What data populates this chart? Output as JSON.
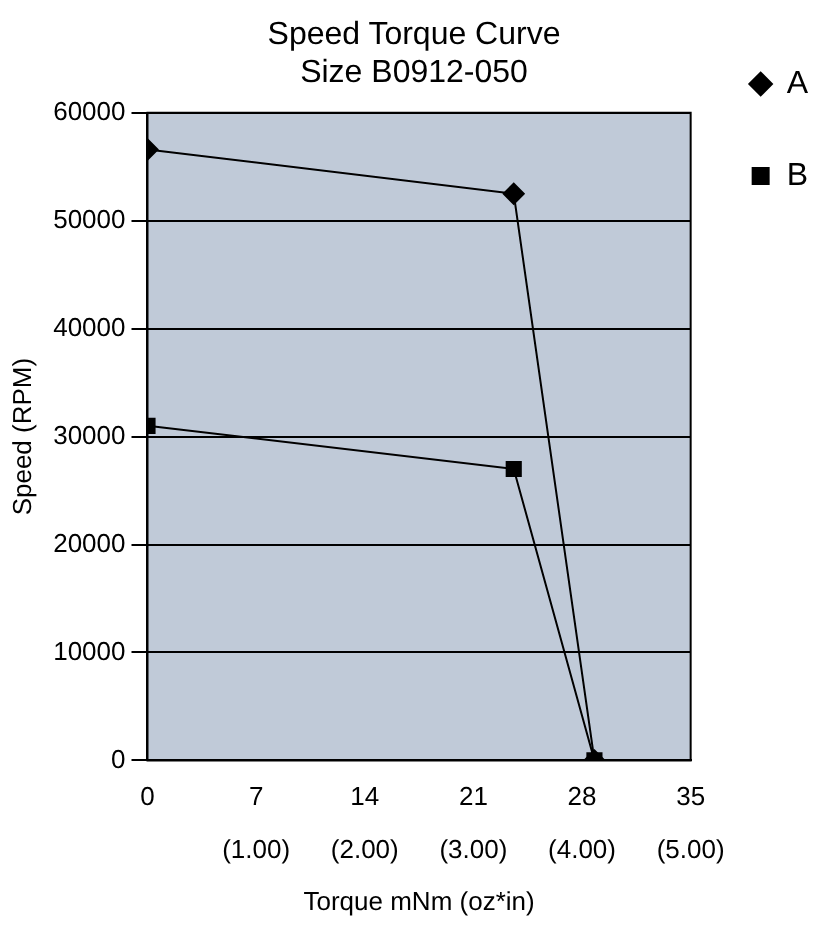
{
  "chart_data": {
    "type": "line",
    "title": "Speed Torque Curve",
    "subtitle": "Size B0912-050",
    "xlabel": "Torque mNm (oz*in)",
    "ylabel": "Speed (RPM)",
    "xlim": [
      0,
      35
    ],
    "xticks": [
      0,
      7,
      14,
      21,
      28,
      35
    ],
    "x2lim": [
      0,
      5
    ],
    "x2ticks": [
      {
        "value": 1,
        "label": "(1.00)"
      },
      {
        "value": 2,
        "label": "(2.00)"
      },
      {
        "value": 3,
        "label": "(3.00)"
      },
      {
        "value": 4,
        "label": "(4.00)"
      },
      {
        "value": 5,
        "label": "(5.00)"
      }
    ],
    "ylim": [
      0,
      60000
    ],
    "yticks": [
      0,
      10000,
      20000,
      30000,
      40000,
      50000,
      60000
    ],
    "grid": "y",
    "legend": "right",
    "line_style": "solid",
    "series": [
      {
        "name": "A",
        "color": "#000000",
        "marker": "diamond",
        "x": [
          0,
          23.6,
          28.8
        ],
        "values": [
          56600,
          52500,
          0
        ]
      },
      {
        "name": "B",
        "color": "#000000",
        "marker": "square",
        "x": [
          0,
          23.6,
          28.8
        ],
        "values": [
          31000,
          27000,
          0
        ]
      }
    ]
  }
}
